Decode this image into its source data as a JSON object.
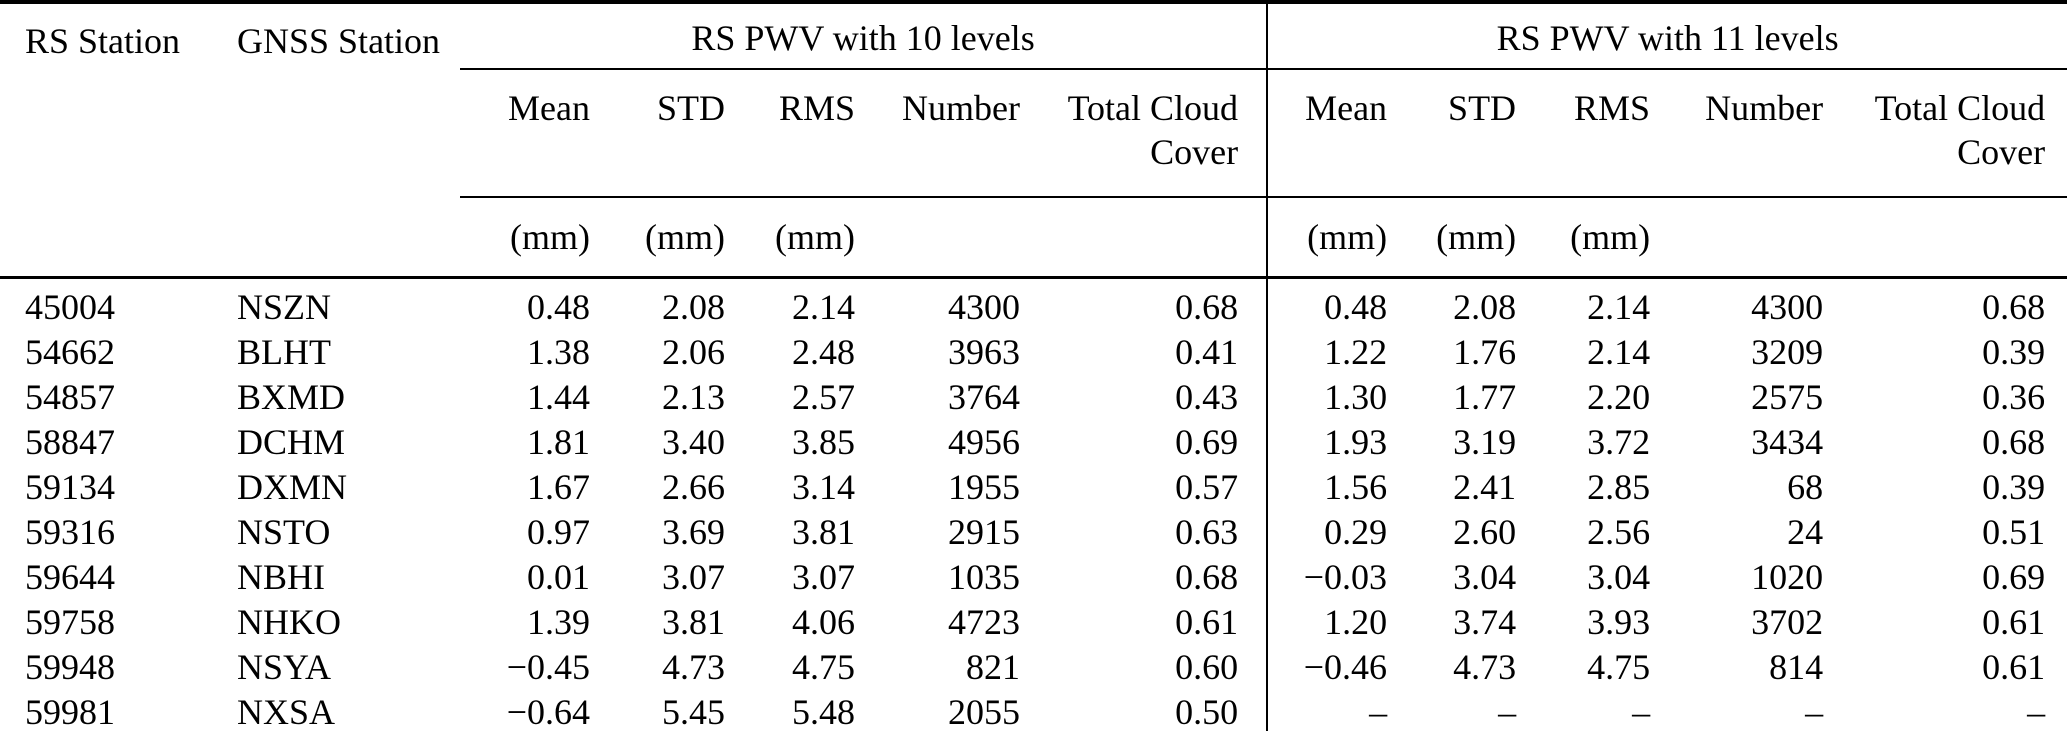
{
  "table": {
    "headers": {
      "rs_station": "RS Station",
      "gnss_station": "GNSS Station"
    },
    "groups": [
      {
        "title": "RS PWV with 10 levels"
      },
      {
        "title": "RS PWV with 11 levels"
      }
    ],
    "sub_headers": [
      "Mean",
      "STD",
      "RMS",
      "Number",
      "Total Cloud Cover"
    ],
    "units": [
      "(mm)",
      "(mm)",
      "(mm)",
      "",
      ""
    ],
    "rows": [
      {
        "rs_station": "45004",
        "gnss_station": "NSZN",
        "pwv10": [
          "0.48",
          "2.08",
          "2.14",
          "4300",
          "0.68"
        ],
        "pwv11": [
          "0.48",
          "2.08",
          "2.14",
          "4300",
          "0.68"
        ]
      },
      {
        "rs_station": "54662",
        "gnss_station": "BLHT",
        "pwv10": [
          "1.38",
          "2.06",
          "2.48",
          "3963",
          "0.41"
        ],
        "pwv11": [
          "1.22",
          "1.76",
          "2.14",
          "3209",
          "0.39"
        ]
      },
      {
        "rs_station": "54857",
        "gnss_station": "BXMD",
        "pwv10": [
          "1.44",
          "2.13",
          "2.57",
          "3764",
          "0.43"
        ],
        "pwv11": [
          "1.30",
          "1.77",
          "2.20",
          "2575",
          "0.36"
        ]
      },
      {
        "rs_station": "58847",
        "gnss_station": "DCHM",
        "pwv10": [
          "1.81",
          "3.40",
          "3.85",
          "4956",
          "0.69"
        ],
        "pwv11": [
          "1.93",
          "3.19",
          "3.72",
          "3434",
          "0.68"
        ]
      },
      {
        "rs_station": "59134",
        "gnss_station": "DXMN",
        "pwv10": [
          "1.67",
          "2.66",
          "3.14",
          "1955",
          "0.57"
        ],
        "pwv11": [
          "1.56",
          "2.41",
          "2.85",
          "68",
          "0.39"
        ]
      },
      {
        "rs_station": "59316",
        "gnss_station": "NSTO",
        "pwv10": [
          "0.97",
          "3.69",
          "3.81",
          "2915",
          "0.63"
        ],
        "pwv11": [
          "0.29",
          "2.60",
          "2.56",
          "24",
          "0.51"
        ]
      },
      {
        "rs_station": "59644",
        "gnss_station": "NBHI",
        "pwv10": [
          "0.01",
          "3.07",
          "3.07",
          "1035",
          "0.68"
        ],
        "pwv11": [
          "−0.03",
          "3.04",
          "3.04",
          "1020",
          "0.69"
        ]
      },
      {
        "rs_station": "59758",
        "gnss_station": "NHKO",
        "pwv10": [
          "1.39",
          "3.81",
          "4.06",
          "4723",
          "0.61"
        ],
        "pwv11": [
          "1.20",
          "3.74",
          "3.93",
          "3702",
          "0.61"
        ]
      },
      {
        "rs_station": "59948",
        "gnss_station": "NSYA",
        "pwv10": [
          "−0.45",
          "4.73",
          "4.75",
          "821",
          "0.60"
        ],
        "pwv11": [
          "−0.46",
          "4.73",
          "4.75",
          "814",
          "0.61"
        ]
      },
      {
        "rs_station": "59981",
        "gnss_station": "NXSA",
        "pwv10": [
          "−0.64",
          "5.45",
          "5.48",
          "2055",
          "0.50"
        ],
        "pwv11": [
          "–",
          "–",
          "–",
          "–",
          "–"
        ]
      }
    ],
    "colors": {
      "text": "#000000",
      "background": "#ffffff",
      "rule": "#000000"
    }
  }
}
